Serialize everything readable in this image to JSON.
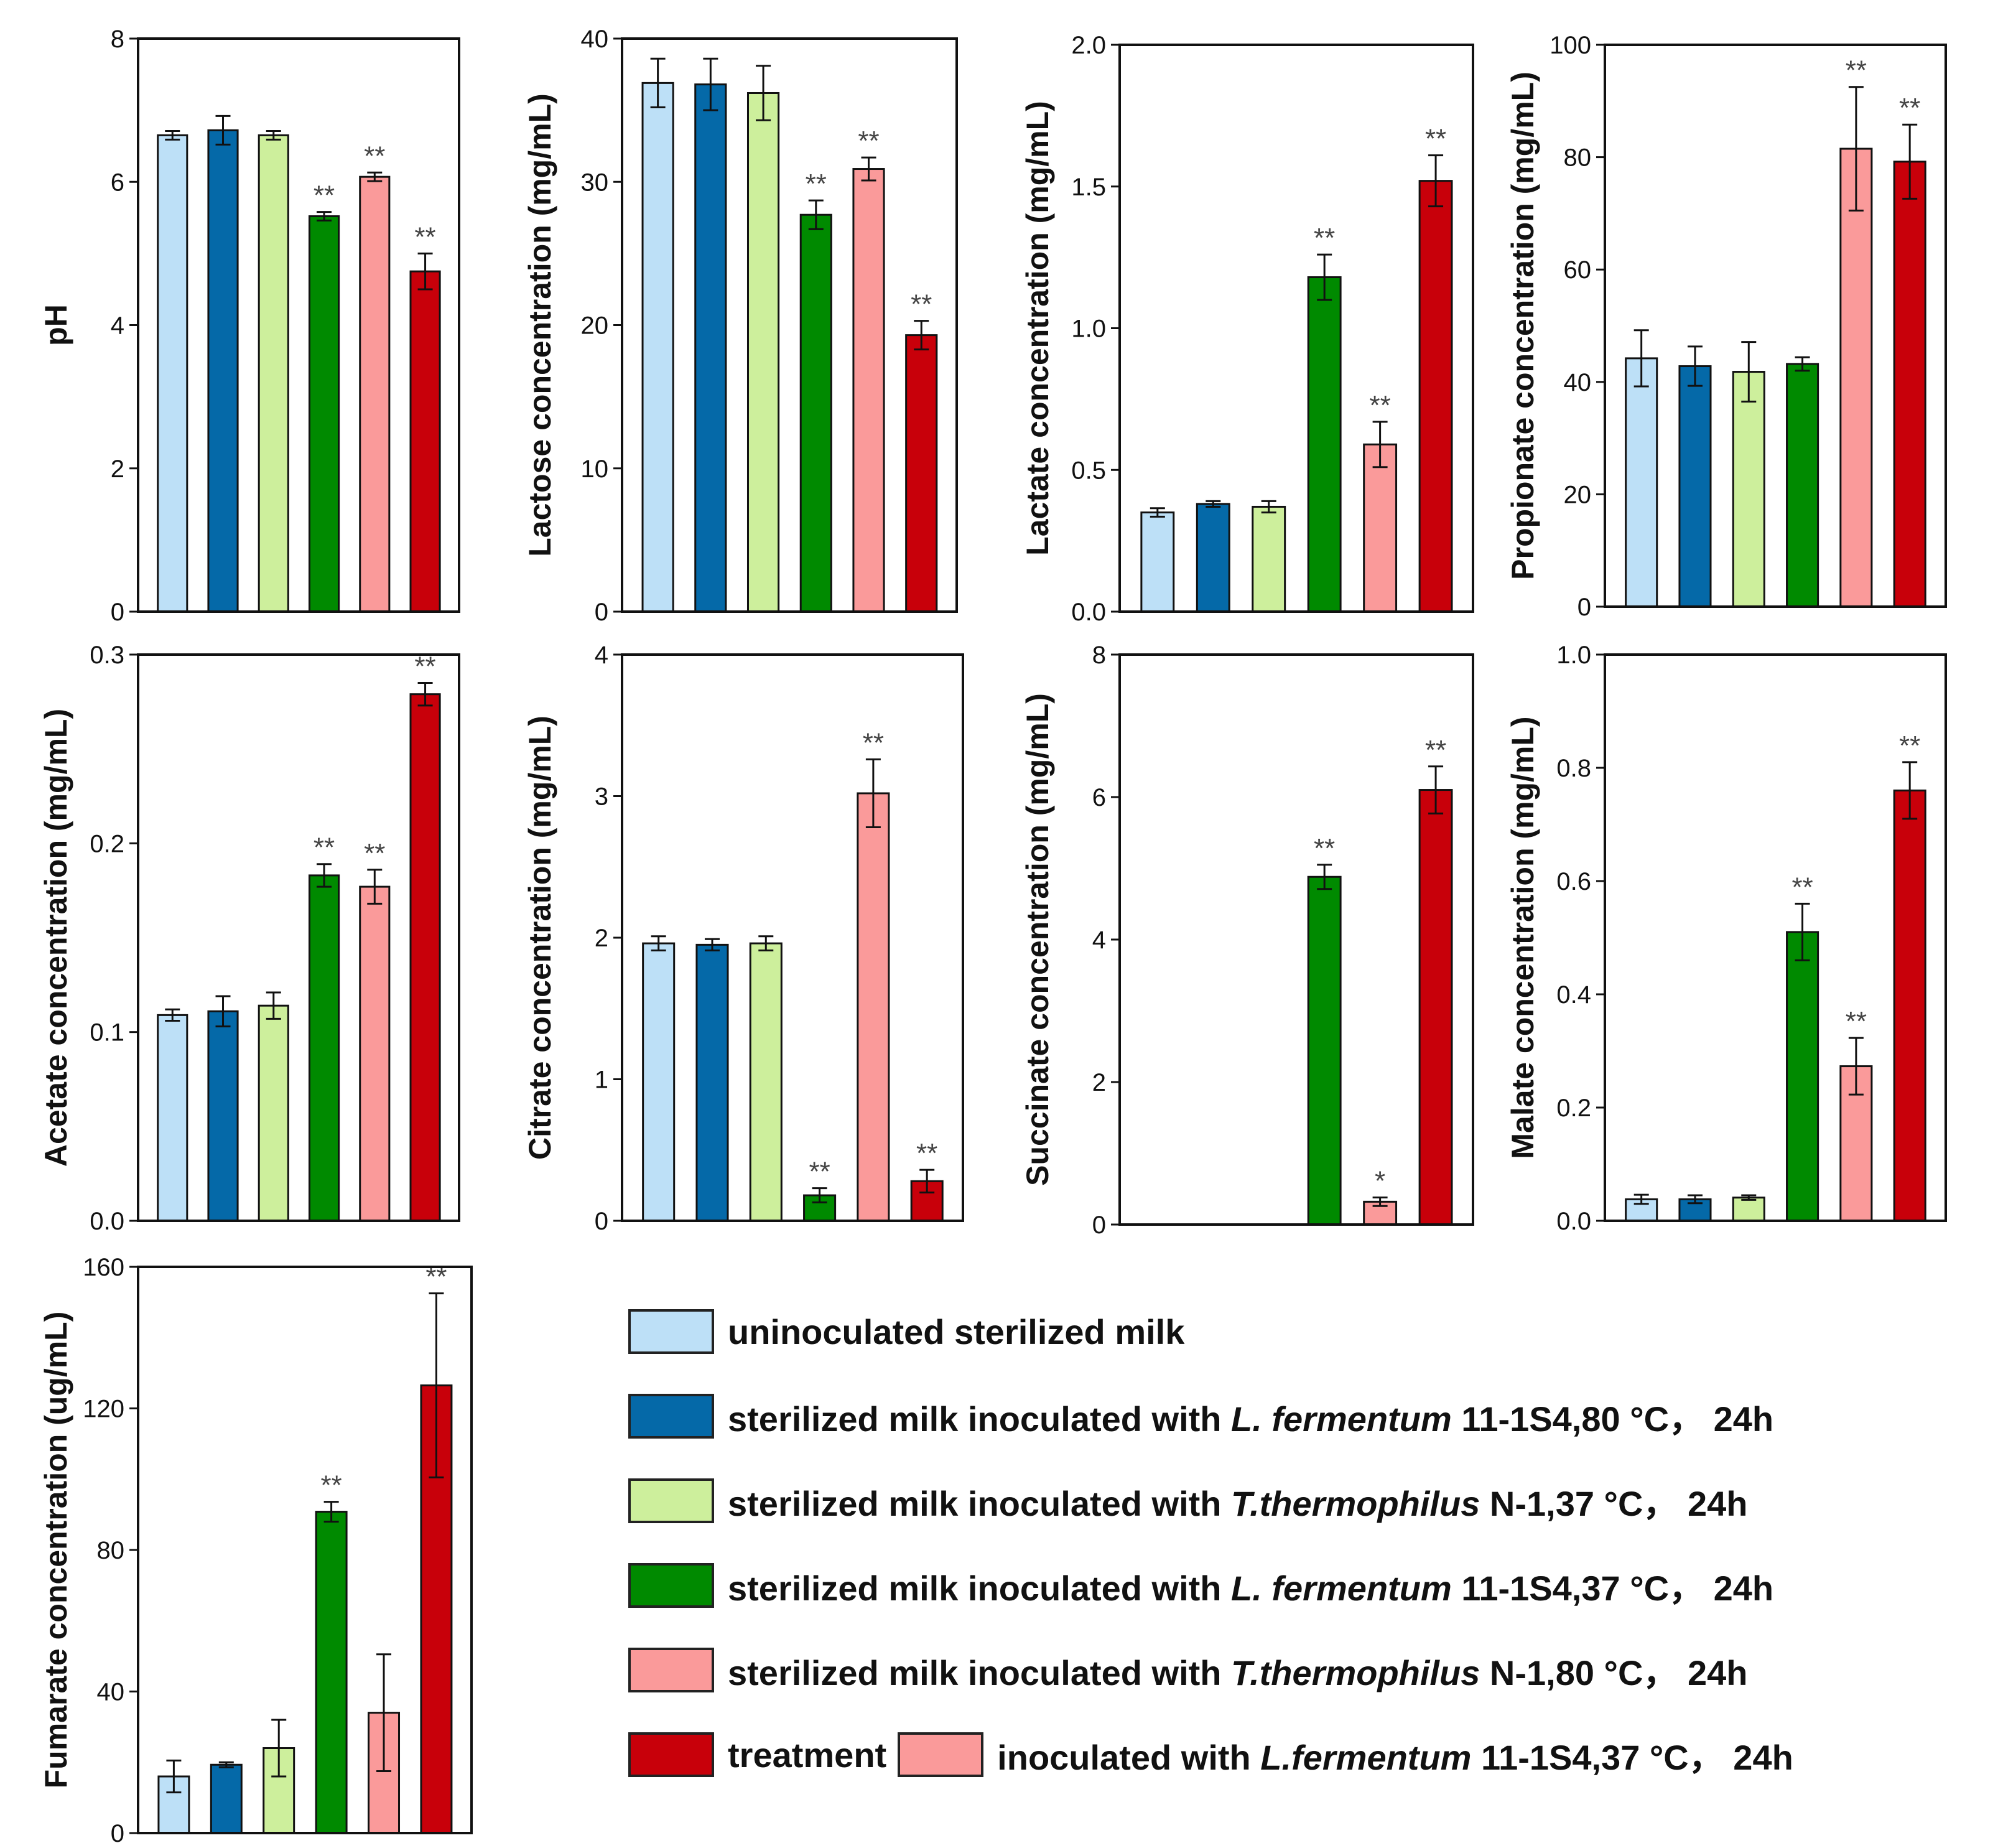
{
  "colors": {
    "uninoculated": "#bde0f7",
    "lf80": "#0569a8",
    "tt37": "#cdef9c",
    "lf37": "#008a00",
    "tt80": "#fa9a9a",
    "treatment": "#c8000a",
    "asterisk": "#444444"
  },
  "legend": [
    {
      "color_key": "uninoculated",
      "prefix": "uninoculated sterilized milk",
      "species": "",
      "suffix": ""
    },
    {
      "color_key": "lf80",
      "prefix": "sterilized milk inoculated with ",
      "species": "L. fermentum",
      "suffix": " 11-1S4,80 °C， 24h"
    },
    {
      "color_key": "tt37",
      "prefix": "sterilized milk inoculated with ",
      "species": "T.thermophilus",
      "suffix": " N-1,37 °C， 24h"
    },
    {
      "color_key": "lf37",
      "prefix": "sterilized milk inoculated with ",
      "species": "L. fermentum",
      "suffix": " 11-1S4,37 °C， 24h"
    },
    {
      "color_key": "tt80",
      "prefix": "sterilized milk inoculated with ",
      "species": "T.thermophilus",
      "suffix": " N-1,80 °C， 24h"
    }
  ],
  "legend_last": {
    "color_key": "treatment",
    "label": "treatment",
    "inner_color_key": "tt80",
    "prefix": "inoculated with ",
    "species": "L.fermentum",
    "suffix": " 11-1S4,37 °C， 24h"
  },
  "chart_data": [
    {
      "type": "bar",
      "id": "ph",
      "title": "",
      "xlabel": "",
      "ylabel": "pH",
      "ylim": [
        0,
        8
      ],
      "yticks": [
        "0",
        "2",
        "4",
        "6",
        "8"
      ],
      "series_keys": [
        "uninoculated",
        "lf80",
        "tt37",
        "lf37",
        "tt80",
        "treatment"
      ],
      "values": [
        6.65,
        6.72,
        6.65,
        5.52,
        6.07,
        4.75
      ],
      "errors": [
        0.06,
        0.2,
        0.06,
        0.06,
        0.06,
        0.25
      ],
      "sig": [
        "",
        "",
        "",
        "**",
        "**",
        "**"
      ]
    },
    {
      "type": "bar",
      "id": "lactose",
      "title": "",
      "xlabel": "",
      "ylabel": "Lactose concentration (mg/mL)",
      "ylim": [
        0,
        40
      ],
      "yticks": [
        "0",
        "10",
        "20",
        "30",
        "40"
      ],
      "series_keys": [
        "uninoculated",
        "lf80",
        "tt37",
        "lf37",
        "tt80",
        "treatment"
      ],
      "values": [
        36.9,
        36.8,
        36.2,
        27.7,
        30.9,
        19.3
      ],
      "errors": [
        1.7,
        1.8,
        1.9,
        1.0,
        0.8,
        1.0
      ],
      "sig": [
        "",
        "",
        "",
        "**",
        "**",
        "**"
      ]
    },
    {
      "type": "bar",
      "id": "lactate",
      "title": "",
      "xlabel": "",
      "ylabel": "Lactate concentration (mg/mL)",
      "ylim": [
        0,
        2.0
      ],
      "yticks": [
        "0.0",
        "0.5",
        "1.0",
        "1.5",
        "2.0"
      ],
      "series_keys": [
        "uninoculated",
        "lf80",
        "tt37",
        "lf37",
        "tt80",
        "treatment"
      ],
      "values": [
        0.35,
        0.38,
        0.37,
        1.18,
        0.59,
        1.52
      ],
      "errors": [
        0.015,
        0.01,
        0.02,
        0.08,
        0.08,
        0.09
      ],
      "sig": [
        "",
        "",
        "",
        "**",
        "**",
        "**"
      ]
    },
    {
      "type": "bar",
      "id": "propionate",
      "title": "",
      "xlabel": "",
      "ylabel": "Propionate concentration (mg/mL)",
      "ylim": [
        0,
        100
      ],
      "yticks": [
        "0",
        "20",
        "40",
        "60",
        "80",
        "100"
      ],
      "series_keys": [
        "uninoculated",
        "lf80",
        "tt37",
        "lf37",
        "tt80",
        "treatment"
      ],
      "values": [
        44.2,
        42.8,
        41.8,
        43.2,
        81.5,
        79.2
      ],
      "errors": [
        5.0,
        3.5,
        5.3,
        1.2,
        11.0,
        6.6
      ],
      "sig": [
        "",
        "",
        "",
        "",
        "**",
        "**"
      ]
    },
    {
      "type": "bar",
      "id": "acetate",
      "title": "",
      "xlabel": "",
      "ylabel": "Acetate concentration (mg/mL)",
      "ylim": [
        0,
        0.3
      ],
      "yticks": [
        "0.0",
        "0.1",
        "0.2",
        "0.3"
      ],
      "series_keys": [
        "uninoculated",
        "lf80",
        "tt37",
        "lf37",
        "tt80",
        "treatment"
      ],
      "values": [
        0.109,
        0.111,
        0.114,
        0.183,
        0.177,
        0.279
      ],
      "errors": [
        0.003,
        0.008,
        0.007,
        0.006,
        0.009,
        0.006
      ],
      "sig": [
        "",
        "",
        "",
        "**",
        "**",
        "**"
      ]
    },
    {
      "type": "bar",
      "id": "citrate",
      "title": "",
      "xlabel": "",
      "ylabel": "Citrate concentration (mg/mL)",
      "ylim": [
        0,
        4
      ],
      "yticks": [
        "0",
        "1",
        "2",
        "3",
        "4"
      ],
      "series_keys": [
        "uninoculated",
        "lf80",
        "tt37",
        "lf37",
        "tt80",
        "treatment"
      ],
      "values": [
        1.96,
        1.95,
        1.96,
        0.18,
        3.02,
        0.28
      ],
      "errors": [
        0.05,
        0.04,
        0.05,
        0.05,
        0.24,
        0.08
      ],
      "sig": [
        "",
        "",
        "",
        "**",
        "**",
        "**"
      ]
    },
    {
      "type": "bar",
      "id": "succinate",
      "title": "",
      "xlabel": "",
      "ylabel": "Succinate concentration (mg/mL)",
      "ylim": [
        0,
        8
      ],
      "yticks": [
        "0",
        "2",
        "4",
        "6",
        "8"
      ],
      "series_keys": [
        "uninoculated",
        "lf80",
        "tt37",
        "lf37",
        "tt80",
        "treatment"
      ],
      "values": [
        0,
        0,
        0,
        4.88,
        0.32,
        6.1
      ],
      "errors": [
        0,
        0,
        0,
        0.17,
        0.06,
        0.33
      ],
      "sig": [
        "",
        "",
        "",
        "**",
        "*",
        "**"
      ]
    },
    {
      "type": "bar",
      "id": "malate",
      "title": "",
      "xlabel": "",
      "ylabel": "Malate concentration (mg/mL)",
      "ylim": [
        0,
        1.0
      ],
      "yticks": [
        "0.0",
        "0.2",
        "0.4",
        "0.6",
        "0.8",
        "1.0"
      ],
      "series_keys": [
        "uninoculated",
        "lf80",
        "tt37",
        "lf37",
        "tt80",
        "treatment"
      ],
      "values": [
        0.038,
        0.038,
        0.041,
        0.51,
        0.273,
        0.76
      ],
      "errors": [
        0.008,
        0.007,
        0.004,
        0.05,
        0.05,
        0.05
      ],
      "sig": [
        "",
        "",
        "",
        "**",
        "**",
        "**"
      ]
    },
    {
      "type": "bar",
      "id": "fumarate",
      "title": "",
      "xlabel": "",
      "ylabel": "Fumarate concentration (ug/mL)",
      "ylim": [
        0,
        160
      ],
      "yticks": [
        "0",
        "40",
        "80",
        "120",
        "160"
      ],
      "series_keys": [
        "uninoculated",
        "lf80",
        "tt37",
        "lf37",
        "tt80",
        "treatment"
      ],
      "values": [
        16,
        19.3,
        24,
        90.8,
        34,
        126.5
      ],
      "errors": [
        4.5,
        0.7,
        8,
        2.8,
        16.5,
        26
      ],
      "sig": [
        "",
        "",
        "",
        "**",
        "",
        "**"
      ]
    }
  ]
}
